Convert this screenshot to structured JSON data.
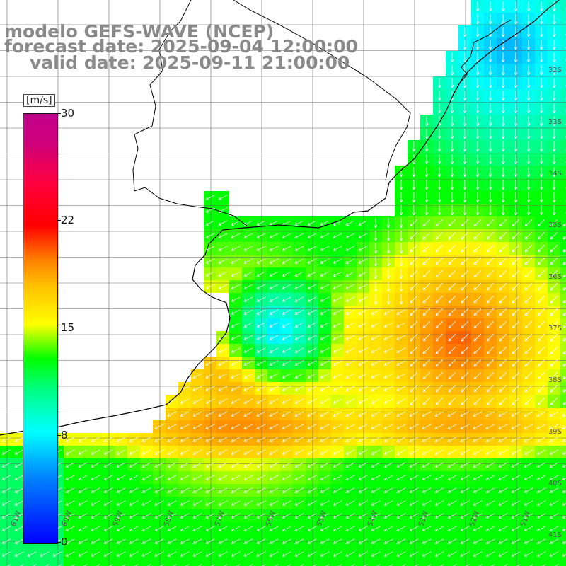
{
  "title": {
    "line1": "modelo GEFS-WAVE (NCEP)",
    "line2": "forecast date: 2025-09-04 12:00:00",
    "line3": "valid date: 2025-09-11 21:00:00"
  },
  "colorbar": {
    "unit": "[m/s]",
    "ticks": [
      "30",
      "22",
      "15",
      "8",
      "0"
    ],
    "colors": [
      "#0000ff",
      "#00ffff",
      "#00ff00",
      "#ffff00",
      "#ff8000",
      "#ff0000",
      "#c0008a"
    ]
  },
  "map": {
    "lat_labels": [
      "32S",
      "33S",
      "34S",
      "35S",
      "36S",
      "37S",
      "38S",
      "39S",
      "40S",
      "41S"
    ],
    "lon_labels": [
      "61W",
      "60W",
      "59W",
      "58W",
      "57W",
      "56W",
      "55W",
      "54W",
      "53W",
      "52W",
      "51W"
    ]
  }
}
